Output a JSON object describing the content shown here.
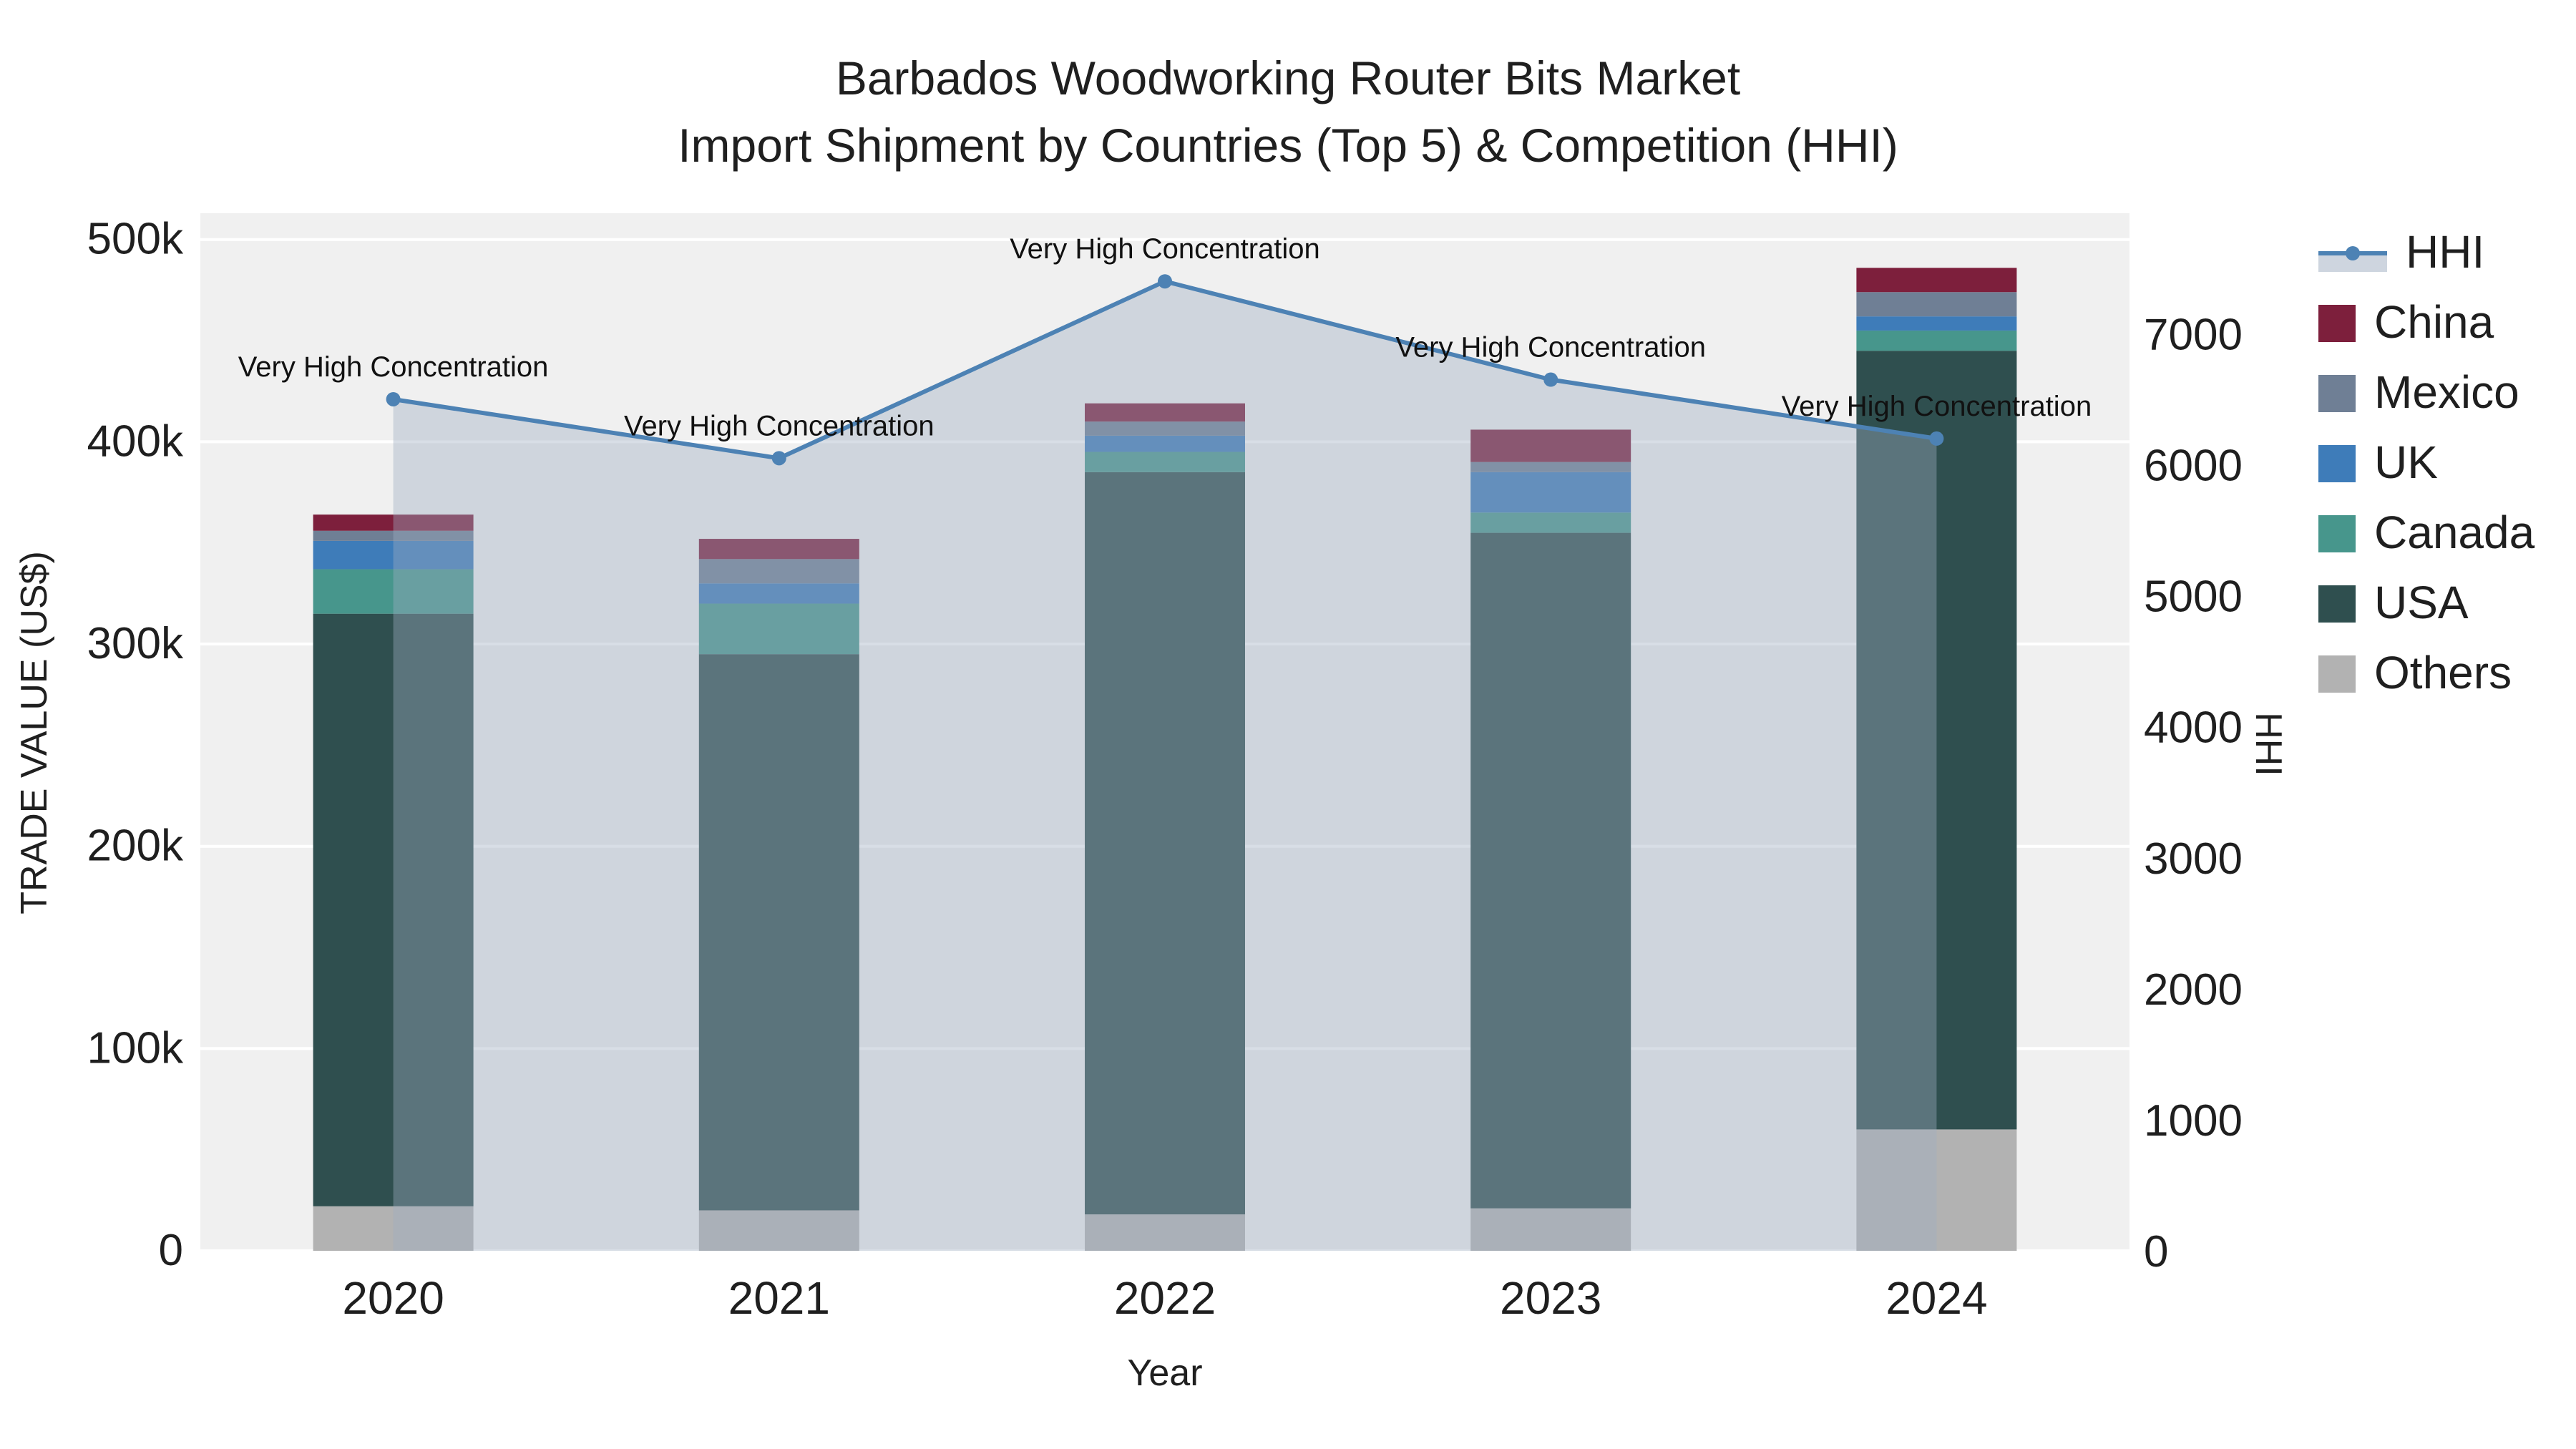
{
  "title": {
    "line1": "Barbados Woodworking Router Bits Market",
    "line2": "Import Shipment by Countries (Top 5) & Competition (HHI)"
  },
  "axis_titles": {
    "y_left": "TRADE VALUE (US$)",
    "y_right": "HHI",
    "x": "Year"
  },
  "legend": {
    "items": [
      {
        "label": "HHI",
        "type": "line",
        "color": "#4d82b4"
      },
      {
        "label": "China",
        "type": "swatch",
        "color": "#7d1f3c"
      },
      {
        "label": "Mexico",
        "type": "swatch",
        "color": "#6f7f95"
      },
      {
        "label": "UK",
        "type": "swatch",
        "color": "#3e7cb9"
      },
      {
        "label": "Canada",
        "type": "swatch",
        "color": "#47968c"
      },
      {
        "label": "USA",
        "type": "swatch",
        "color": "#2f4f4f"
      },
      {
        "label": "Others",
        "type": "swatch",
        "color": "#b2b2b2"
      }
    ]
  },
  "chart_data": {
    "type": "bar+line",
    "title": "Barbados Woodworking Router Bits Market — Import Shipment by Countries (Top 5) & Competition (HHI)",
    "categories": [
      2020,
      2021,
      2022,
      2023,
      2024
    ],
    "bar_unit": "US$",
    "stack_order_bottom_to_top": [
      "Others",
      "USA",
      "Canada",
      "UK",
      "Mexico",
      "China"
    ],
    "series": [
      {
        "name": "Others",
        "color": "#b2b2b2",
        "values": [
          22000,
          20000,
          18000,
          21000,
          60000
        ]
      },
      {
        "name": "USA",
        "color": "#2f4f4f",
        "values": [
          293000,
          275000,
          367000,
          334000,
          385000
        ]
      },
      {
        "name": "Canada",
        "color": "#47968c",
        "values": [
          22000,
          25000,
          10000,
          10000,
          10000
        ]
      },
      {
        "name": "UK",
        "color": "#3e7cb9",
        "values": [
          14000,
          10000,
          8000,
          20000,
          7000
        ]
      },
      {
        "name": "Mexico",
        "color": "#6f7f95",
        "values": [
          5000,
          12000,
          7000,
          5000,
          12000
        ]
      },
      {
        "name": "China",
        "color": "#7d1f3c",
        "values": [
          8000,
          10000,
          9000,
          16000,
          12000
        ]
      }
    ],
    "line_series": {
      "name": "HHI",
      "color": "#4d82b4",
      "area_fill": "rgba(158,172,192,0.4)",
      "values": [
        6500,
        6050,
        7400,
        6650,
        6200
      ],
      "annotations": [
        "Very High Concentration",
        "Very High Concentration",
        "Very High Concentration",
        "Very High Concentration",
        "Very High Concentration"
      ]
    },
    "y_left": {
      "label": "TRADE VALUE (US$)",
      "range": [
        0,
        513000
      ],
      "ticks": [
        [
          0,
          "0"
        ],
        [
          100000,
          "100k"
        ],
        [
          200000,
          "200k"
        ],
        [
          300000,
          "300k"
        ],
        [
          400000,
          "400k"
        ],
        [
          500000,
          "500k"
        ]
      ]
    },
    "y_right": {
      "label": "HHI",
      "range": [
        0,
        7920
      ],
      "ticks": [
        [
          0,
          "0"
        ],
        [
          1000,
          "1000"
        ],
        [
          2000,
          "2000"
        ],
        [
          3000,
          "3000"
        ],
        [
          4000,
          "4000"
        ],
        [
          5000,
          "5000"
        ],
        [
          6000,
          "6000"
        ],
        [
          7000,
          "7000"
        ]
      ]
    },
    "x_label": "Year",
    "plot_bg": "#f0f0f0",
    "grid_color": "#ffffff",
    "legend_position": "right"
  }
}
